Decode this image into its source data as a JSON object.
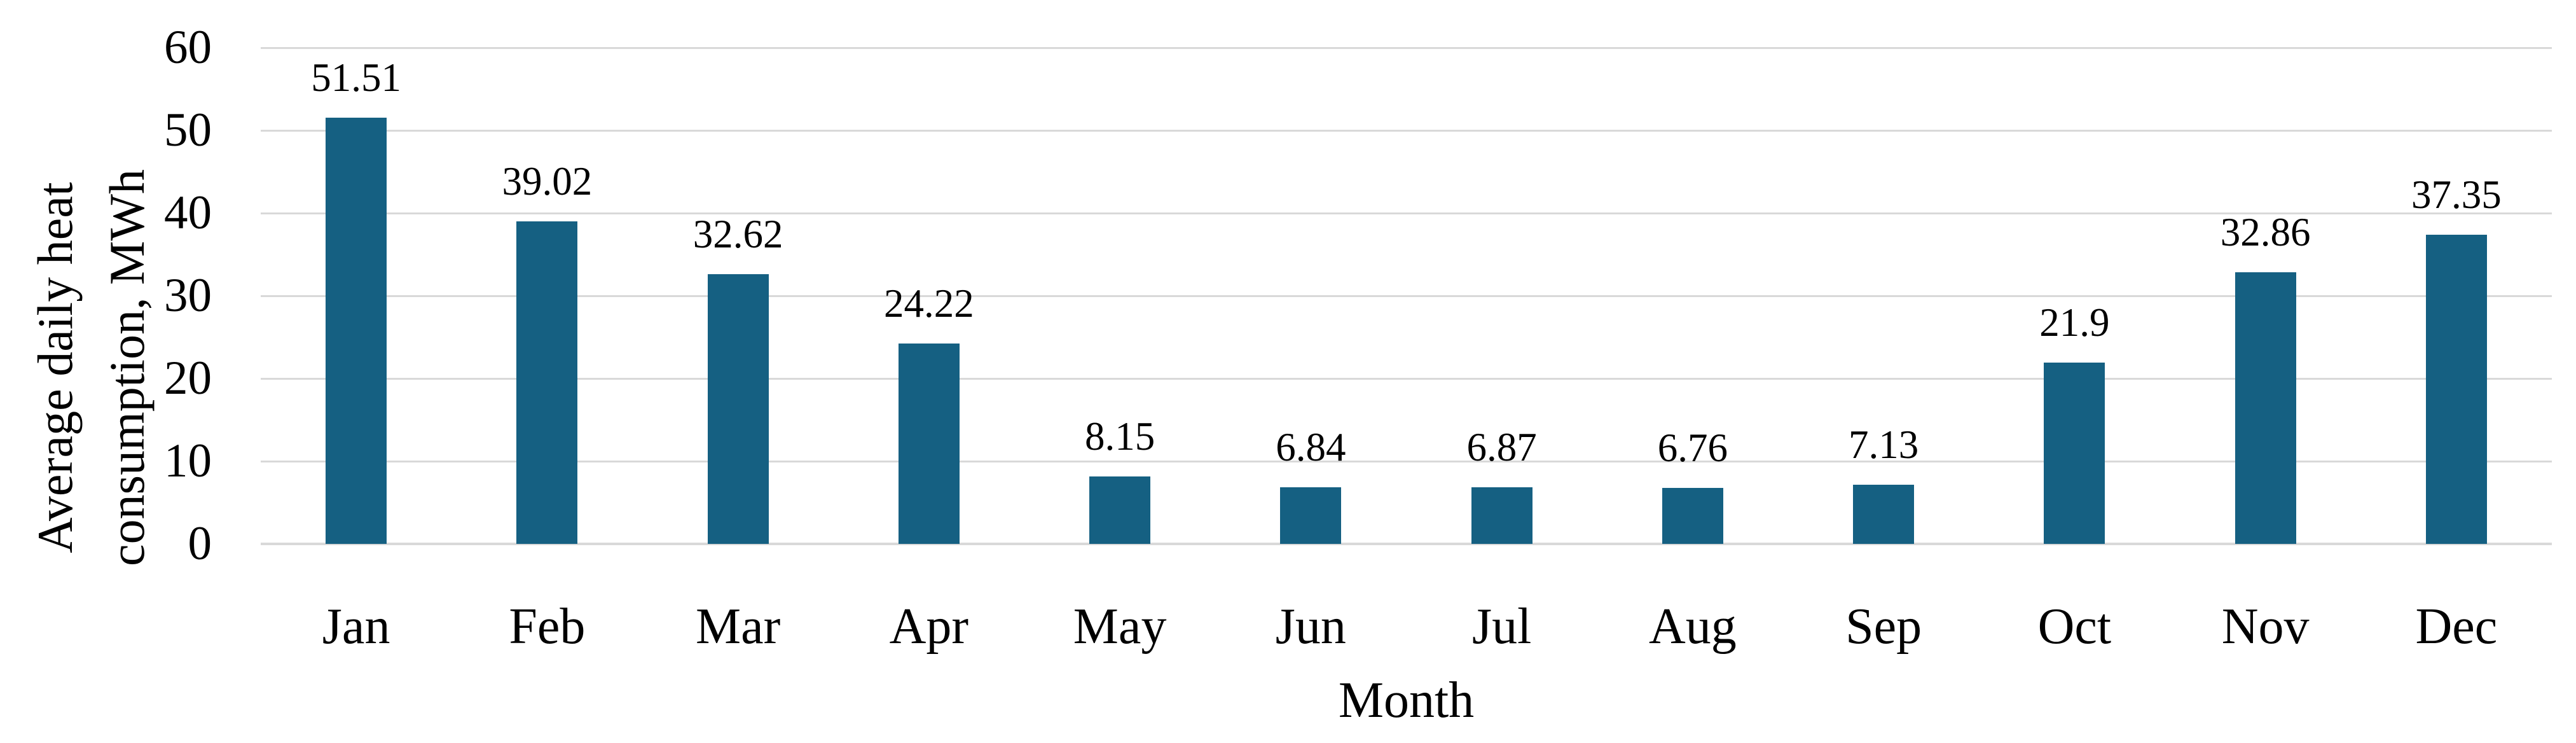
{
  "chart_data": {
    "type": "bar",
    "title": "",
    "xlabel": "Month",
    "ylabel_line1": "Average daily heat",
    "ylabel_line2": "consumption, MWh",
    "categories": [
      "Jan",
      "Feb",
      "Mar",
      "Apr",
      "May",
      "Jun",
      "Jul",
      "Aug",
      "Sep",
      "Oct",
      "Nov",
      "Dec"
    ],
    "values": [
      51.51,
      39.02,
      32.62,
      24.22,
      8.15,
      6.84,
      6.87,
      6.76,
      7.13,
      21.9,
      32.86,
      37.35
    ],
    "value_labels": [
      "51.51",
      "39.02",
      "32.62",
      "24.22",
      "8.15",
      "6.84",
      "6.87",
      "6.76",
      "7.13",
      "21.9",
      "32.86",
      "37.35"
    ],
    "ylim": [
      0,
      60
    ],
    "ytick_step": 10,
    "ytick_labels": [
      "0",
      "10",
      "20",
      "30",
      "40",
      "50",
      "60"
    ],
    "grid": "horizontal-on",
    "legend": "none",
    "bar_color": "#156082",
    "gridline_color": "#d9d9d9",
    "axis_line_color": "#d9d9d9",
    "text_color": "#000000"
  }
}
